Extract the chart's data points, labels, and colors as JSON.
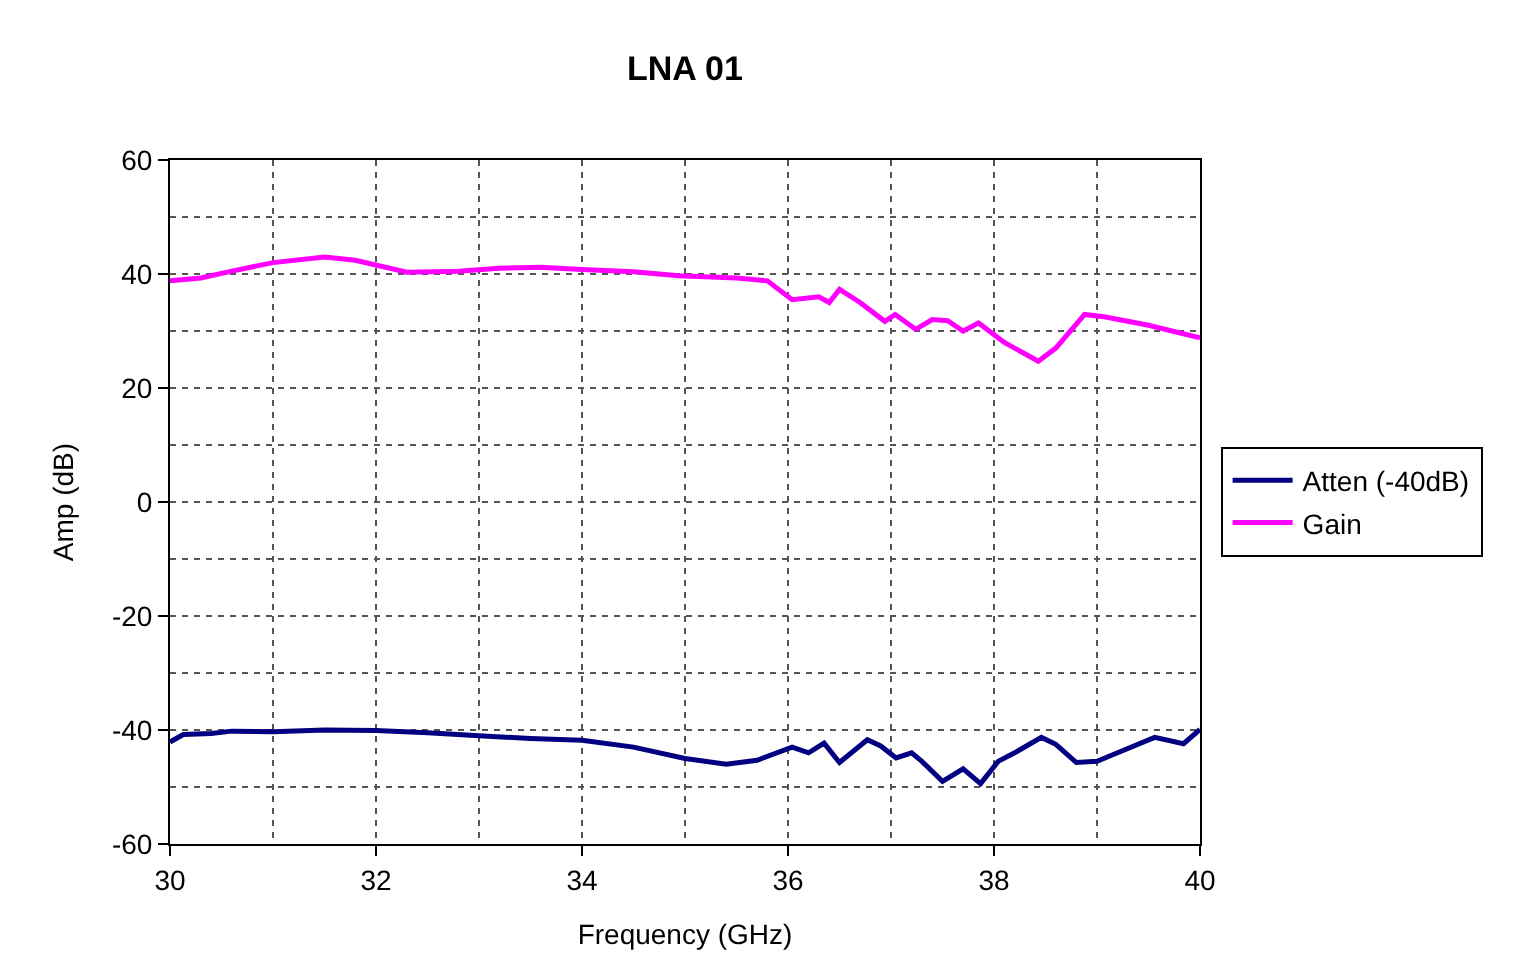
{
  "chart_data": {
    "type": "line",
    "title": "LNA 01",
    "xlabel": "Frequency (GHz)",
    "ylabel": "Amp (dB)",
    "xlim": [
      30,
      40
    ],
    "xticks": [
      30,
      32,
      34,
      36,
      38,
      40
    ],
    "ylim": [
      -60,
      60
    ],
    "yticks": [
      -60,
      -40,
      -20,
      0,
      20,
      40,
      60
    ],
    "grid": true,
    "legend": "right",
    "marker": "none",
    "line_style": "solid",
    "series": [
      {
        "name": "Atten (-40dB)",
        "color": "#000080",
        "x": [
          30,
          30.13,
          30.4,
          30.6,
          31,
          31.5,
          32,
          32.5,
          33,
          33.5,
          34,
          34.5,
          35,
          35.4,
          35.7,
          36.04,
          36.2,
          36.35,
          36.5,
          36.77,
          36.9,
          37.05,
          37.2,
          37.3,
          37.5,
          37.7,
          37.87,
          38.04,
          38.2,
          38.46,
          38.6,
          38.8,
          39,
          39.2,
          39.56,
          39.84,
          40
        ],
        "values": [
          -42.1,
          -40.8,
          -40.6,
          -40.2,
          -40.3,
          -40,
          -40.1,
          -40.5,
          -41,
          -41.5,
          -41.8,
          -43,
          -45,
          -46,
          -45.3,
          -43,
          -44,
          -42.3,
          -45.7,
          -41.7,
          -42.8,
          -44.9,
          -44,
          -45.5,
          -49,
          -46.8,
          -49.4,
          -45.5,
          -44,
          -41.3,
          -42.5,
          -45.7,
          -45.5,
          -44,
          -41.3,
          -42.4,
          -39.9
        ]
      },
      {
        "name": "Gain",
        "color": "#ff00ff",
        "x": [
          30,
          30.3,
          30.6,
          31,
          31.5,
          31.8,
          32.3,
          32.8,
          33.2,
          33.6,
          34,
          34.5,
          34.94,
          35.5,
          35.8,
          36.04,
          36.3,
          36.4,
          36.5,
          36.7,
          36.94,
          37.04,
          37.24,
          37.4,
          37.55,
          37.7,
          37.85,
          38.1,
          38.43,
          38.6,
          38.88,
          39.07,
          39.5,
          40
        ],
        "values": [
          38.8,
          39.3,
          40.5,
          42,
          43,
          42.4,
          40.3,
          40.5,
          41,
          41.2,
          40.8,
          40.4,
          39.7,
          39.3,
          38.8,
          35.5,
          36,
          35,
          37.3,
          35,
          31.7,
          32.9,
          30.3,
          32,
          31.8,
          30,
          31.4,
          28,
          24.7,
          27,
          32.9,
          32.5,
          31,
          28.8
        ]
      }
    ]
  }
}
